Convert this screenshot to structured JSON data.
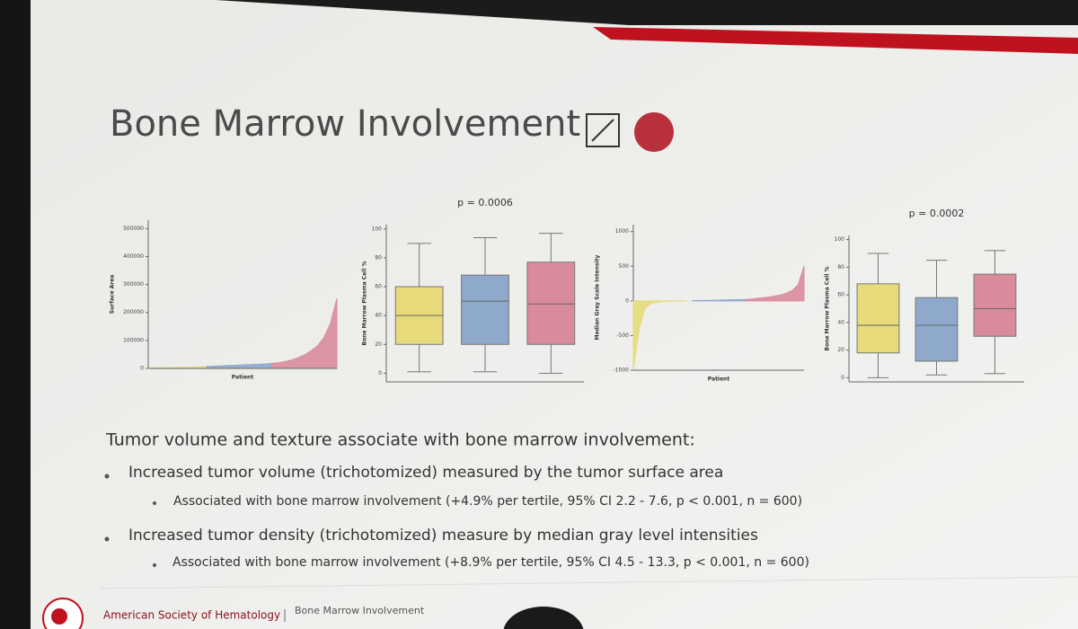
{
  "slide": {
    "title": "Bone Marrow Involvement",
    "heading": "Tumor volume and texture associate with bone marrow involvement:",
    "bullets": [
      {
        "text": "Increased tumor volume (trichotomized) measured by the tumor surface area",
        "sub": "Associated with bone marrow involvement (+4.9% per tertile, 95% CI 2.2 - 7.6, p < 0.001, n = 600)"
      },
      {
        "text": "Increased tumor density (trichotomized) measure by median gray level intensities",
        "sub": "Associated with bone marrow involvement (+8.9% per tertile, 95% CI 4.5 - 13.3, p < 0.001, n = 600)"
      }
    ],
    "footer": {
      "org": "American Society of Hematology",
      "section": "Bone Marrow Involvement"
    }
  },
  "chart_data": [
    {
      "type": "area",
      "ylabel": "Surface Area",
      "xlabel": "Patient",
      "ylim": [
        0,
        530000
      ],
      "yticks": [
        0,
        100000,
        200000,
        300000,
        400000,
        500000
      ],
      "xlim": [
        1,
        30
      ],
      "series": [
        {
          "color": "#e6da7a",
          "x": [
            1,
            2,
            3,
            4,
            5,
            6,
            7,
            8,
            9,
            10
          ],
          "values": [
            1000,
            1500,
            2000,
            2500,
            3000,
            3500,
            4000,
            5000,
            6000,
            7000
          ]
        },
        {
          "color": "#8ea9cc",
          "x": [
            10,
            11,
            12,
            13,
            14,
            15,
            16,
            17,
            18,
            19,
            20
          ],
          "values": [
            7000,
            8000,
            9000,
            10000,
            11000,
            12000,
            13000,
            14000,
            15000,
            16000,
            18000
          ]
        },
        {
          "color": "#d98b9c",
          "x": [
            20,
            21,
            22,
            23,
            24,
            25,
            26,
            27,
            28,
            29,
            30
          ],
          "values": [
            18000,
            20000,
            24000,
            30000,
            38000,
            48000,
            62000,
            80000,
            110000,
            160000,
            250000
          ]
        }
      ]
    },
    {
      "type": "box",
      "title": "p = 0.0006",
      "ylabel": "Bone Marrow Plasma Cell %",
      "ylim": [
        -6,
        103
      ],
      "yticks": [
        0,
        20,
        40,
        60,
        80,
        100
      ],
      "boxes": [
        {
          "color": "#e6da7a",
          "min": 1,
          "q1": 20,
          "median": 40,
          "q3": 60,
          "max": 90
        },
        {
          "color": "#8ea9cc",
          "min": 1,
          "q1": 20,
          "median": 50,
          "q3": 68,
          "max": 94
        },
        {
          "color": "#d98b9c",
          "min": 0,
          "q1": 20,
          "median": 48,
          "q3": 77,
          "max": 97
        }
      ]
    },
    {
      "type": "area",
      "ylabel": "Median Gray Scale Intensity",
      "xlabel": "Patient",
      "ylim": [
        -1000,
        1100
      ],
      "yticks": [
        -1000,
        -500,
        0,
        500,
        1000
      ],
      "xlim": [
        1,
        30
      ],
      "series": [
        {
          "color": "#e6da7a",
          "x": [
            1,
            2,
            3,
            4,
            5,
            6,
            7,
            8,
            9,
            10
          ],
          "values": [
            -1000,
            -400,
            -100,
            -40,
            -20,
            -10,
            -5,
            -3,
            -2,
            -1
          ]
        },
        {
          "color": "#8ea9cc",
          "x": [
            11,
            12,
            13,
            14,
            15,
            16,
            17,
            18,
            19,
            20
          ],
          "values": [
            2,
            4,
            6,
            8,
            10,
            12,
            14,
            16,
            18,
            20
          ]
        },
        {
          "color": "#d98b9c",
          "x": [
            20,
            21,
            22,
            23,
            24,
            25,
            26,
            27,
            28,
            29,
            30
          ],
          "values": [
            20,
            25,
            35,
            45,
            55,
            70,
            85,
            110,
            150,
            230,
            500
          ]
        }
      ]
    },
    {
      "type": "box",
      "title": "p = 0.0002",
      "ylabel": "Bone Marrow Plasma Cell %",
      "ylim": [
        -3,
        103
      ],
      "yticks": [
        0,
        20,
        40,
        60,
        80,
        100
      ],
      "boxes": [
        {
          "color": "#e6da7a",
          "min": 0,
          "q1": 18,
          "median": 38,
          "q3": 68,
          "max": 90
        },
        {
          "color": "#8ea9cc",
          "min": 2,
          "q1": 12,
          "median": 38,
          "q3": 58,
          "max": 85
        },
        {
          "color": "#d98b9c",
          "min": 3,
          "q1": 30,
          "median": 50,
          "q3": 75,
          "max": 92
        }
      ]
    }
  ]
}
